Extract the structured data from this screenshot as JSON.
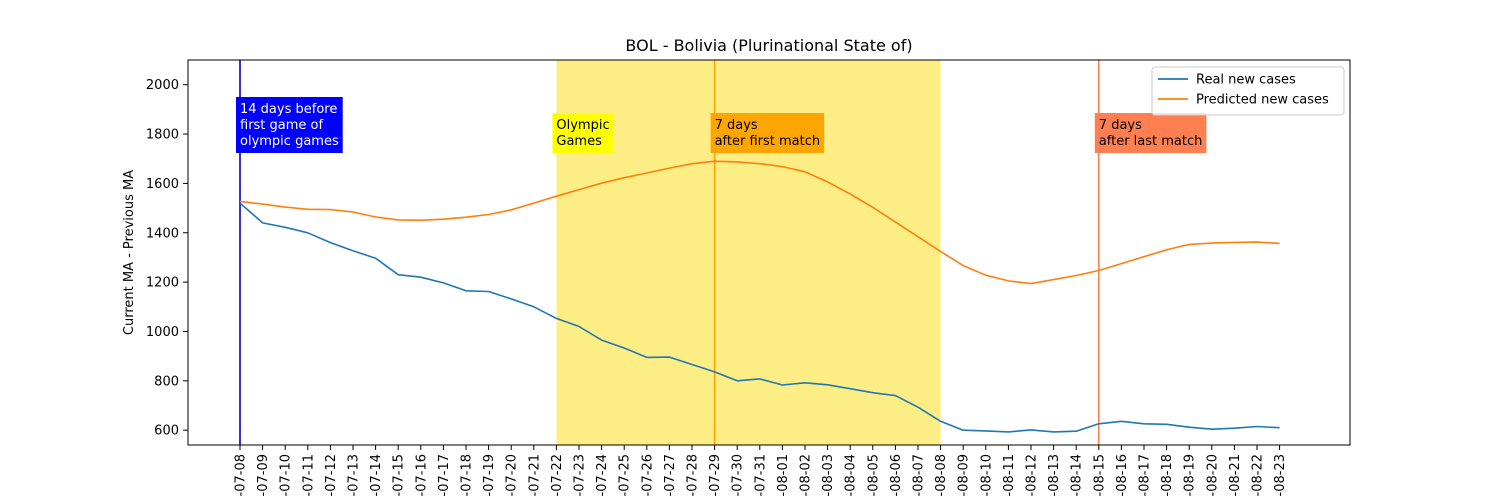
{
  "chart_data": {
    "type": "line",
    "title": "BOL - Bolivia (Plurinational State of)",
    "xlabel": "",
    "ylabel": "Current MA - Previous MA",
    "ylim": [
      540,
      2100
    ],
    "yticks": [
      600,
      800,
      1000,
      1200,
      1400,
      1600,
      1800,
      2000
    ],
    "x": [
      "2021-07-08",
      "2021-07-09",
      "2021-07-10",
      "2021-07-11",
      "2021-07-12",
      "2021-07-13",
      "2021-07-14",
      "2021-07-15",
      "2021-07-16",
      "2021-07-17",
      "2021-07-18",
      "2021-07-19",
      "2021-07-20",
      "2021-07-21",
      "2021-07-22",
      "2021-07-23",
      "2021-07-24",
      "2021-07-25",
      "2021-07-26",
      "2021-07-27",
      "2021-07-28",
      "2021-07-29",
      "2021-07-30",
      "2021-07-31",
      "2021-08-01",
      "2021-08-02",
      "2021-08-03",
      "2021-08-04",
      "2021-08-05",
      "2021-08-06",
      "2021-08-07",
      "2021-08-08",
      "2021-08-09",
      "2021-08-10",
      "2021-08-11",
      "2021-08-12",
      "2021-08-13",
      "2021-08-14",
      "2021-08-15",
      "2021-08-16",
      "2021-08-17",
      "2021-08-18",
      "2021-08-19",
      "2021-08-20",
      "2021-08-21",
      "2021-08-22",
      "2021-08-23"
    ],
    "tick_labels": [
      "-07-08",
      "-07-09",
      "-07-10",
      "-07-11",
      "-07-12",
      "-07-13",
      "-07-14",
      "-07-15",
      "-07-16",
      "-07-17",
      "-07-18",
      "-07-19",
      "-07-20",
      "-07-21",
      "-07-22",
      "-07-23",
      "-07-24",
      "-07-25",
      "-07-26",
      "-07-27",
      "-07-28",
      "-07-29",
      "-07-30",
      "-07-31",
      "-08-01",
      "-08-02",
      "-08-03",
      "-08-04",
      "-08-05",
      "-08-06",
      "-08-07",
      "-08-08",
      "-08-09",
      "-08-10",
      "-08-11",
      "-08-12",
      "-08-13",
      "-08-14",
      "-08-15",
      "-08-16",
      "-08-17",
      "-08-18",
      "-08-19",
      "-08-20",
      "-08-21",
      "-08-22",
      "-08-23"
    ],
    "series": [
      {
        "name": "Real new cases",
        "color": "#1f77b4",
        "values": [
          1520,
          1440,
          1422,
          1400,
          1360,
          1327,
          1297,
          1230,
          1220,
          1197,
          1165,
          1162,
          1132,
          1100,
          1053,
          1020,
          965,
          933,
          895,
          896,
          866,
          836,
          800,
          808,
          783,
          792,
          784,
          768,
          752,
          740,
          693,
          636,
          600,
          597,
          593,
          601,
          593,
          596,
          626,
          636,
          626,
          624,
          612,
          604,
          608,
          615,
          610
        ]
      },
      {
        "name": "Predicted new cases",
        "color": "#ff7f0e",
        "values": [
          1527,
          1516,
          1504,
          1495,
          1494,
          1484,
          1464,
          1452,
          1451,
          1455,
          1463,
          1474,
          1493,
          1520,
          1548,
          1575,
          1601,
          1623,
          1642,
          1662,
          1680,
          1690,
          1687,
          1680,
          1668,
          1647,
          1606,
          1557,
          1503,
          1443,
          1384,
          1324,
          1267,
          1228,
          1205,
          1194,
          1210,
          1227,
          1247,
          1275,
          1303,
          1331,
          1353,
          1358,
          1361,
          1362,
          1357
        ]
      }
    ],
    "shaded_region": {
      "from": "2021-07-22",
      "to": "2021-08-08",
      "color": "#fcee85"
    },
    "vlines": [
      {
        "x": "2021-07-08",
        "color": "#0000cc"
      },
      {
        "x": "2021-07-29",
        "color": "#ffa500"
      },
      {
        "x": "2021-08-15",
        "color": "#ff7f50"
      }
    ],
    "annotations": [
      {
        "text": [
          "14 days before",
          "first game of",
          "olympic games"
        ],
        "at": "2021-07-08",
        "bg": "#0000ff",
        "fg": "#ffffff"
      },
      {
        "text": [
          "Olympic",
          "Games"
        ],
        "at": "2021-07-22",
        "bg": "#ffff00",
        "fg": "#000000"
      },
      {
        "text": [
          "7 days",
          "after first match"
        ],
        "at": "2021-07-29",
        "bg": "#ffa500",
        "fg": "#000000"
      },
      {
        "text": [
          "7 days",
          "after last match"
        ],
        "at": "2021-08-15",
        "bg": "#ff7f50",
        "fg": "#000000"
      }
    ],
    "legend": "top-right",
    "grid": false
  }
}
